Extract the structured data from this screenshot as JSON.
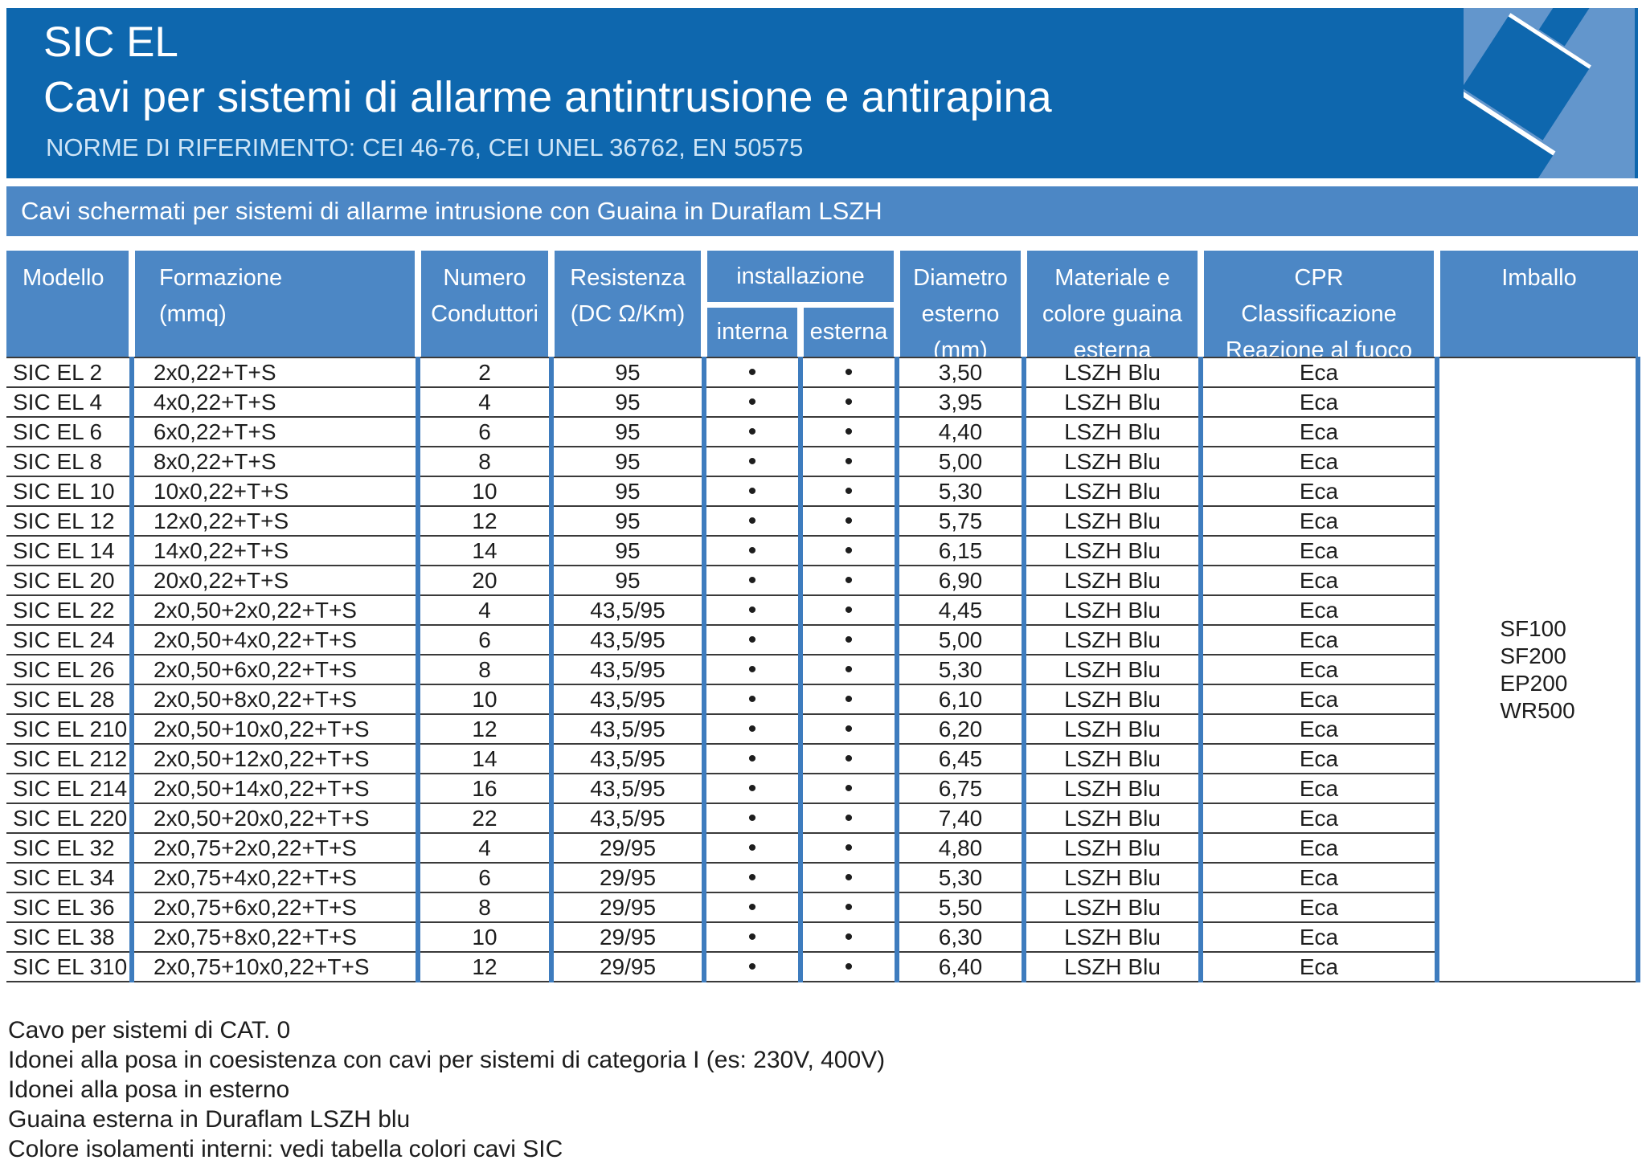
{
  "colors": {
    "band_blue": "#0e67ae",
    "panel_blue": "#4c87c5",
    "divider_blue": "#3e7cbe",
    "art_blue": "#6396cc",
    "norms_text": "#cde4f6"
  },
  "header": {
    "product": "SIC EL",
    "title": "Cavi per sistemi di allarme antintrusione e antirapina",
    "norms": "NORME DI RIFERIMENTO: CEI 46-76, CEI UNEL 36762, EN 50575"
  },
  "banner": {
    "text": "Cavi schermati per sistemi di allarme intrusione con Guaina in Duraflam LSZH"
  },
  "table": {
    "headers": {
      "model": "Modello",
      "formation": "Formazione\n(mmq)",
      "conductors": "Numero\nConduttori",
      "resistance": "Resistenza\n(DC Ω/Km)",
      "installation": "installazione",
      "internal": "interna",
      "external": "esterna",
      "diameter": "Diametro\nesterno\n(mm)",
      "material": "Materiale e\ncolore guaina\nesterna",
      "cpr": "CPR\nClassificazione\nReazione al fuoco",
      "packaging": "Imballo"
    },
    "dot_symbol": "•",
    "rows": [
      {
        "model": "SIC EL 2",
        "formation": "2x0,22+T+S",
        "conductors": "2",
        "resistance": "95",
        "internal": true,
        "external": true,
        "diameter": "3,50",
        "sheath": "LSZH Blu",
        "cpr": "Eca"
      },
      {
        "model": "SIC EL 4",
        "formation": "4x0,22+T+S",
        "conductors": "4",
        "resistance": "95",
        "internal": true,
        "external": true,
        "diameter": "3,95",
        "sheath": "LSZH Blu",
        "cpr": "Eca"
      },
      {
        "model": "SIC EL 6",
        "formation": "6x0,22+T+S",
        "conductors": "6",
        "resistance": "95",
        "internal": true,
        "external": true,
        "diameter": "4,40",
        "sheath": "LSZH Blu",
        "cpr": "Eca"
      },
      {
        "model": "SIC EL 8",
        "formation": "8x0,22+T+S",
        "conductors": "8",
        "resistance": "95",
        "internal": true,
        "external": true,
        "diameter": "5,00",
        "sheath": "LSZH Blu",
        "cpr": "Eca"
      },
      {
        "model": "SIC EL 10",
        "formation": "10x0,22+T+S",
        "conductors": "10",
        "resistance": "95",
        "internal": true,
        "external": true,
        "diameter": "5,30",
        "sheath": "LSZH Blu",
        "cpr": "Eca"
      },
      {
        "model": "SIC EL 12",
        "formation": "12x0,22+T+S",
        "conductors": "12",
        "resistance": "95",
        "internal": true,
        "external": true,
        "diameter": "5,75",
        "sheath": "LSZH Blu",
        "cpr": "Eca"
      },
      {
        "model": "SIC EL 14",
        "formation": "14x0,22+T+S",
        "conductors": "14",
        "resistance": "95",
        "internal": true,
        "external": true,
        "diameter": "6,15",
        "sheath": "LSZH Blu",
        "cpr": "Eca"
      },
      {
        "model": "SIC EL 20",
        "formation": "20x0,22+T+S",
        "conductors": "20",
        "resistance": "95",
        "internal": true,
        "external": true,
        "diameter": "6,90",
        "sheath": "LSZH Blu",
        "cpr": "Eca"
      },
      {
        "model": "SIC EL 22",
        "formation": "2x0,50+2x0,22+T+S",
        "conductors": "4",
        "resistance": "43,5/95",
        "internal": true,
        "external": true,
        "diameter": "4,45",
        "sheath": "LSZH Blu",
        "cpr": "Eca"
      },
      {
        "model": "SIC EL 24",
        "formation": "2x0,50+4x0,22+T+S",
        "conductors": "6",
        "resistance": "43,5/95",
        "internal": true,
        "external": true,
        "diameter": "5,00",
        "sheath": "LSZH Blu",
        "cpr": "Eca"
      },
      {
        "model": "SIC EL 26",
        "formation": "2x0,50+6x0,22+T+S",
        "conductors": "8",
        "resistance": "43,5/95",
        "internal": true,
        "external": true,
        "diameter": "5,30",
        "sheath": "LSZH Blu",
        "cpr": "Eca"
      },
      {
        "model": "SIC EL 28",
        "formation": "2x0,50+8x0,22+T+S",
        "conductors": "10",
        "resistance": "43,5/95",
        "internal": true,
        "external": true,
        "diameter": "6,10",
        "sheath": "LSZH Blu",
        "cpr": "Eca"
      },
      {
        "model": "SIC EL 210",
        "formation": "2x0,50+10x0,22+T+S",
        "conductors": "12",
        "resistance": "43,5/95",
        "internal": true,
        "external": true,
        "diameter": "6,20",
        "sheath": "LSZH Blu",
        "cpr": "Eca"
      },
      {
        "model": "SIC EL 212",
        "formation": "2x0,50+12x0,22+T+S",
        "conductors": "14",
        "resistance": "43,5/95",
        "internal": true,
        "external": true,
        "diameter": "6,45",
        "sheath": "LSZH Blu",
        "cpr": "Eca"
      },
      {
        "model": "SIC EL 214",
        "formation": "2x0,50+14x0,22+T+S",
        "conductors": "16",
        "resistance": "43,5/95",
        "internal": true,
        "external": true,
        "diameter": "6,75",
        "sheath": "LSZH Blu",
        "cpr": "Eca"
      },
      {
        "model": "SIC EL 220",
        "formation": "2x0,50+20x0,22+T+S",
        "conductors": "22",
        "resistance": "43,5/95",
        "internal": true,
        "external": true,
        "diameter": "7,40",
        "sheath": "LSZH Blu",
        "cpr": "Eca"
      },
      {
        "model": "SIC EL 32",
        "formation": "2x0,75+2x0,22+T+S",
        "conductors": "4",
        "resistance": "29/95",
        "internal": true,
        "external": true,
        "diameter": "4,80",
        "sheath": "LSZH Blu",
        "cpr": "Eca"
      },
      {
        "model": "SIC EL 34",
        "formation": "2x0,75+4x0,22+T+S",
        "conductors": "6",
        "resistance": "29/95",
        "internal": true,
        "external": true,
        "diameter": "5,30",
        "sheath": "LSZH Blu",
        "cpr": "Eca"
      },
      {
        "model": "SIC EL 36",
        "formation": "2x0,75+6x0,22+T+S",
        "conductors": "8",
        "resistance": "29/95",
        "internal": true,
        "external": true,
        "diameter": "5,50",
        "sheath": "LSZH Blu",
        "cpr": "Eca"
      },
      {
        "model": "SIC EL 38",
        "formation": "2x0,75+8x0,22+T+S",
        "conductors": "10",
        "resistance": "29/95",
        "internal": true,
        "external": true,
        "diameter": "6,30",
        "sheath": "LSZH Blu",
        "cpr": "Eca"
      },
      {
        "model": "SIC EL 310",
        "formation": "2x0,75+10x0,22+T+S",
        "conductors": "12",
        "resistance": "29/95",
        "internal": true,
        "external": true,
        "diameter": "6,40",
        "sheath": "LSZH Blu",
        "cpr": "Eca"
      }
    ],
    "imballo": [
      "SF100",
      "SF200",
      "EP200",
      "WR500"
    ]
  },
  "footer": {
    "notes": [
      "Cavo per sistemi di CAT. 0",
      "Idonei alla posa in coesistenza con cavi per sistemi di categoria I (es: 230V, 400V)",
      "Idonei alla posa in esterno",
      "Guaina esterna in Duraflam LSZH blu",
      "Colore isolamenti interni: vedi tabella colori cavi SIC"
    ]
  }
}
